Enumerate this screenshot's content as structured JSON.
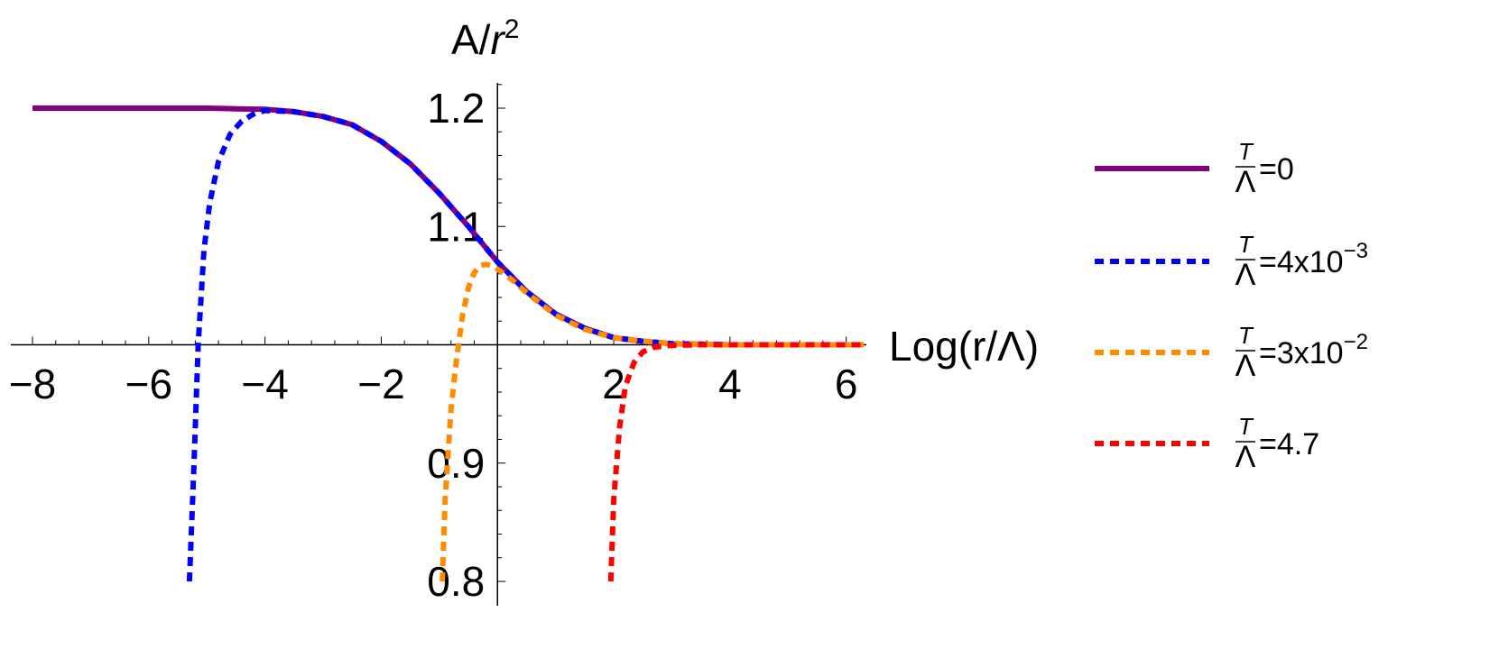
{
  "chart_data": {
    "type": "line",
    "title": "",
    "xlabel": "Log(r/Λ)",
    "ylabel": "A/r²",
    "ylabel_parts": {
      "base": "A/",
      "var": "r",
      "sup": "2"
    },
    "xlim": [
      -8,
      6.3
    ],
    "ylim": [
      0.8,
      1.22
    ],
    "x_origin_y": 1.0,
    "y_origin_x": 0,
    "x_ticks": [
      -8,
      -6,
      -4,
      -2,
      2,
      4,
      6
    ],
    "x_tick_labels": [
      "−8",
      "−6",
      "−4",
      "−2",
      "2",
      "4",
      "6"
    ],
    "y_ticks": [
      0.8,
      0.9,
      1.1,
      1.2
    ],
    "y_tick_labels": [
      "0.8",
      "0.9",
      "1.1",
      "1.2"
    ],
    "grid": false,
    "legend_position": "right",
    "series": [
      {
        "name": "T/Λ=0",
        "color": "#800080",
        "style": "solid",
        "x": [
          -8,
          -6,
          -5,
          -4.5,
          -4,
          -3.5,
          -3,
          -2.5,
          -2,
          -1.5,
          -1,
          -0.5,
          0,
          0.5,
          1,
          1.5,
          2,
          2.5,
          3,
          4,
          5,
          6.3
        ],
        "y": [
          1.2,
          1.2,
          1.2,
          1.1995,
          1.199,
          1.197,
          1.193,
          1.186,
          1.172,
          1.153,
          1.128,
          1.1,
          1.07,
          1.045,
          1.026,
          1.014,
          1.006,
          1.003,
          1.001,
          1.0,
          1.0,
          1.0
        ]
      },
      {
        "name": "T/Λ=4x10⁻³",
        "color": "#0000ff",
        "style": "dotted",
        "x": [
          -5.3,
          -5.22,
          -5.15,
          -5.05,
          -4.95,
          -4.8,
          -4.6,
          -4.4,
          -4.2,
          -4.0,
          -3.5,
          -3,
          -2.5,
          -2,
          -1.5,
          -1,
          -0.5,
          0,
          0.5,
          1,
          1.5,
          2,
          2.5,
          3,
          4,
          5,
          6.3
        ],
        "y": [
          0.8,
          0.9,
          1.0,
          1.08,
          1.12,
          1.155,
          1.178,
          1.189,
          1.195,
          1.198,
          1.197,
          1.193,
          1.186,
          1.172,
          1.153,
          1.128,
          1.1,
          1.07,
          1.045,
          1.026,
          1.014,
          1.006,
          1.003,
          1.001,
          1.0,
          1.0,
          1.0
        ]
      },
      {
        "name": "T/Λ=3x10⁻²",
        "color": "#ff8c00",
        "style": "dotted",
        "x": [
          -0.95,
          -0.9,
          -0.8,
          -0.7,
          -0.6,
          -0.5,
          -0.4,
          -0.3,
          -0.2,
          -0.1,
          0,
          0.25,
          0.5,
          1,
          1.5,
          2,
          2.5,
          3,
          4,
          5,
          6.3
        ],
        "y": [
          0.8,
          0.87,
          0.945,
          0.99,
          1.025,
          1.048,
          1.061,
          1.067,
          1.068,
          1.067,
          1.064,
          1.055,
          1.044,
          1.025,
          1.013,
          1.006,
          1.003,
          1.001,
          1.0,
          1.0,
          1.0
        ]
      },
      {
        "name": "T/Λ=4.7",
        "color": "#ff0000",
        "style": "dotted",
        "x": [
          1.95,
          2.0,
          2.1,
          2.2,
          2.35,
          2.5,
          2.7,
          3.0,
          3.5,
          4,
          5,
          6.3
        ],
        "y": [
          0.8,
          0.87,
          0.93,
          0.965,
          0.985,
          0.994,
          0.998,
          0.9995,
          1.0,
          1.0,
          1.0,
          1.0
        ]
      }
    ]
  },
  "legend": [
    {
      "numer": "T",
      "denom": "Λ",
      "rest": "=0",
      "exp": ""
    },
    {
      "numer": "T",
      "denom": "Λ",
      "rest": "=4x10",
      "exp": "−3"
    },
    {
      "numer": "T",
      "denom": "Λ",
      "rest": "=3x10",
      "exp": "−2"
    },
    {
      "numer": "T",
      "denom": "Λ",
      "rest": "=4.7",
      "exp": ""
    }
  ]
}
